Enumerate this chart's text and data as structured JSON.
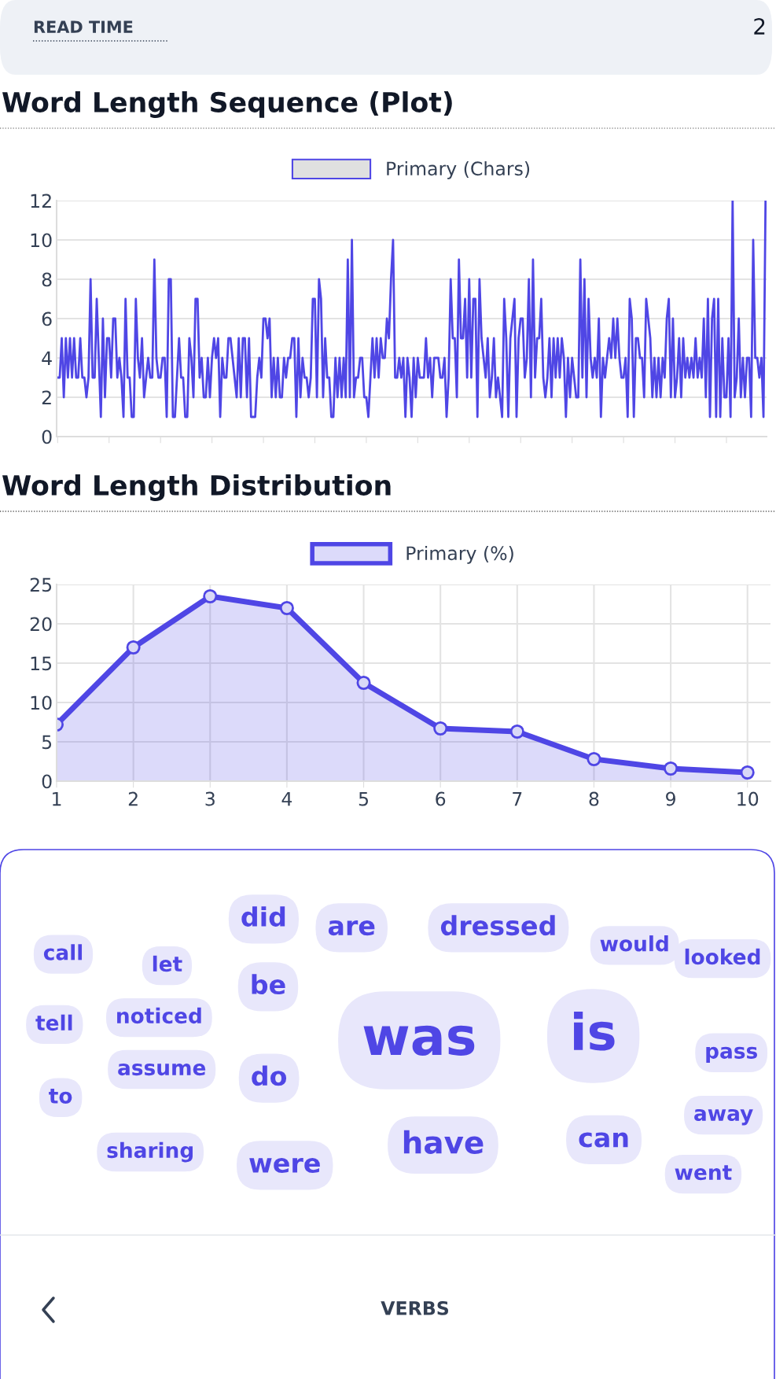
{
  "chart_data": [
    {
      "type": "other",
      "annotations": [
        "READ TIME",
        "2"
      ]
    },
    {
      "type": "line",
      "title": "Word Length Sequence (Plot)",
      "legend": "top",
      "grid": "y",
      "tick_labels": "y",
      "ylim": [
        0,
        12
      ],
      "yticks": [
        0,
        2,
        4,
        6,
        8,
        10,
        12
      ],
      "categories": [
        null,
        null,
        null,
        null,
        null,
        null,
        null,
        null,
        null,
        null,
        null,
        null,
        null,
        null,
        null,
        null,
        null,
        null,
        null,
        null,
        null,
        null,
        null,
        null,
        null,
        null,
        null,
        null,
        null,
        null,
        null,
        null,
        null,
        null,
        null,
        null,
        null,
        null,
        null,
        null,
        null,
        null,
        null,
        null,
        null,
        null,
        null,
        null,
        null,
        null,
        null,
        null,
        null,
        null,
        null,
        null,
        null,
        null,
        null,
        null,
        null,
        null,
        null,
        null,
        null,
        null,
        null,
        null,
        null,
        null,
        null,
        null,
        null,
        null,
        null,
        null,
        null,
        null,
        null,
        null,
        null,
        null,
        null,
        null,
        null,
        null,
        null,
        null,
        null,
        null,
        null,
        null,
        null,
        null,
        null,
        null,
        null,
        null,
        null,
        null,
        null,
        null,
        null,
        null,
        null,
        null,
        null,
        null,
        null,
        null,
        null,
        null,
        null,
        null,
        null,
        null,
        null,
        null,
        null,
        null,
        null,
        null,
        null,
        null,
        null,
        null,
        null,
        null,
        null,
        null,
        null,
        null,
        null,
        null,
        null,
        null,
        null,
        null,
        null,
        null,
        null,
        null,
        null,
        null,
        null,
        null,
        null,
        null,
        null,
        null,
        null,
        null,
        null,
        null,
        null,
        null,
        null,
        null,
        null,
        null,
        null,
        null,
        null,
        null,
        null,
        null,
        null,
        null,
        null,
        null,
        null,
        null,
        null,
        null,
        null,
        null,
        null,
        null,
        null,
        null,
        null,
        null,
        null,
        null,
        null,
        null,
        null,
        null,
        null,
        null,
        null,
        null,
        null,
        null,
        null,
        null,
        null,
        null,
        null,
        null,
        null,
        null,
        null,
        null,
        null,
        null,
        null,
        null,
        null,
        null,
        null,
        null,
        null,
        null,
        null,
        null,
        null,
        null,
        null,
        null,
        null,
        null,
        null,
        null,
        null,
        null,
        null,
        null,
        null,
        null,
        null,
        null,
        null,
        null,
        null,
        null,
        null,
        null,
        null,
        null,
        null,
        null,
        null,
        null,
        null,
        null,
        null,
        null,
        null,
        null,
        null,
        null,
        null,
        null,
        null,
        null,
        null,
        null,
        null,
        null,
        null,
        null,
        null,
        null,
        null,
        null,
        null,
        null,
        null,
        null,
        null,
        null,
        null,
        null,
        null,
        null,
        null,
        null,
        null,
        null,
        null,
        null,
        null,
        null,
        null,
        null,
        null,
        null,
        null,
        null,
        null,
        null,
        null,
        null,
        null,
        null,
        null,
        null,
        null,
        null,
        null,
        null,
        null,
        null,
        null,
        null,
        null,
        null,
        null,
        null,
        null,
        null,
        null,
        null,
        null,
        null,
        null,
        null,
        null,
        null,
        null,
        null,
        null,
        null,
        null,
        null,
        null,
        null,
        null,
        null,
        null,
        null,
        null,
        null,
        null,
        null,
        null,
        null,
        null,
        null,
        null,
        null,
        null,
        null,
        null
      ],
      "series": [
        {
          "name": "Primary (Chars)",
          "color": "#4f46e5",
          "values": [
            3,
            3,
            5,
            2,
            5,
            3,
            5,
            3,
            5,
            3,
            3,
            5,
            3,
            3,
            2,
            3,
            8,
            3,
            3,
            7,
            4,
            1,
            6,
            2,
            5,
            5,
            3,
            6,
            6,
            3,
            4,
            3,
            1,
            7,
            3,
            3,
            1,
            1,
            7,
            4,
            3,
            5,
            2,
            3,
            4,
            3,
            3,
            9,
            4,
            3,
            3,
            4,
            4,
            1,
            8,
            8,
            1,
            1,
            3,
            5,
            3,
            3,
            1,
            1,
            5,
            4,
            2,
            7,
            7,
            3,
            4,
            2,
            2,
            4,
            2,
            4,
            5,
            4,
            5,
            1,
            4,
            3,
            3,
            5,
            5,
            4,
            3,
            2,
            5,
            2,
            5,
            5,
            2,
            5,
            1,
            1,
            1,
            3,
            4,
            3,
            6,
            6,
            5,
            6,
            2,
            4,
            2,
            4,
            2,
            2,
            4,
            3,
            4,
            4,
            5,
            5,
            1,
            5,
            2,
            4,
            3,
            3,
            2,
            3,
            7,
            7,
            2,
            8,
            7,
            2,
            5,
            3,
            3,
            1,
            1,
            4,
            2,
            4,
            2,
            4,
            2,
            9,
            2,
            10,
            2,
            3,
            3,
            4,
            4,
            2,
            2,
            1,
            3,
            5,
            3,
            5,
            3,
            5,
            4,
            4,
            6,
            5,
            8,
            10,
            3,
            3,
            4,
            3,
            4,
            1,
            4,
            3,
            1,
            4,
            2,
            4,
            3,
            3,
            3,
            5,
            3,
            4,
            2,
            4,
            4,
            4,
            3,
            3,
            4,
            1,
            3,
            8,
            5,
            5,
            2,
            9,
            5,
            5,
            7,
            3,
            8,
            3,
            7,
            7,
            1,
            8,
            5,
            4,
            3,
            5,
            2,
            3,
            5,
            2,
            3,
            2,
            1,
            7,
            5,
            1,
            5,
            6,
            7,
            1,
            5,
            6,
            6,
            3,
            4,
            8,
            2,
            9,
            3,
            5,
            5,
            7,
            3,
            2,
            3,
            5,
            2,
            5,
            3,
            5,
            3,
            5,
            4,
            1,
            4,
            2,
            4,
            3,
            2,
            2,
            9,
            3,
            8,
            2,
            7,
            4,
            3,
            4,
            3,
            6,
            1,
            4,
            3,
            4,
            5,
            4,
            6,
            4,
            6,
            4,
            3,
            3,
            4,
            1,
            7,
            6,
            1,
            5,
            5,
            4,
            4,
            2,
            7,
            6,
            5,
            2,
            4,
            2,
            4,
            2,
            4,
            3,
            6,
            7,
            2,
            6,
            2,
            3,
            5,
            2,
            5,
            3,
            4,
            3,
            4,
            3,
            5,
            3,
            4,
            3,
            6,
            2,
            7,
            1,
            6,
            7,
            1,
            7,
            1,
            5,
            2,
            2,
            5,
            1,
            12,
            2,
            3,
            6,
            2,
            4,
            2,
            4,
            4,
            1,
            10,
            4,
            4,
            3,
            4,
            1,
            12
          ]
        }
      ]
    },
    {
      "type": "area",
      "title": "Word Length Distribution",
      "legend": "top",
      "grid": true,
      "marker": "circle",
      "xlim": [
        1,
        10.3
      ],
      "xticks": [
        1,
        2,
        3,
        4,
        5,
        6,
        7,
        8,
        9,
        10
      ],
      "ylim": [
        0,
        25
      ],
      "yticks": [
        0,
        5,
        10,
        15,
        20,
        25
      ],
      "x": [
        1,
        2,
        3,
        4,
        5,
        6,
        7,
        8,
        9,
        10
      ],
      "series": [
        {
          "name": "Primary (%)",
          "color": "#4f46e5",
          "values": [
            7.2,
            17,
            23.5,
            22,
            12.5,
            6.7,
            6.3,
            2.8,
            1.6,
            1.1
          ]
        }
      ]
    },
    {
      "type": "other",
      "categories": [
        "did",
        "are",
        "dressed",
        "would",
        "looked",
        "call",
        "let",
        "be",
        "tell",
        "noticed",
        "was",
        "is",
        "pass",
        "assume",
        "do",
        "to",
        "away",
        "sharing",
        "were",
        "have",
        "can",
        "went"
      ],
      "color": "#4f46e5",
      "annotations": [
        "VERBS"
      ]
    }
  ]
}
